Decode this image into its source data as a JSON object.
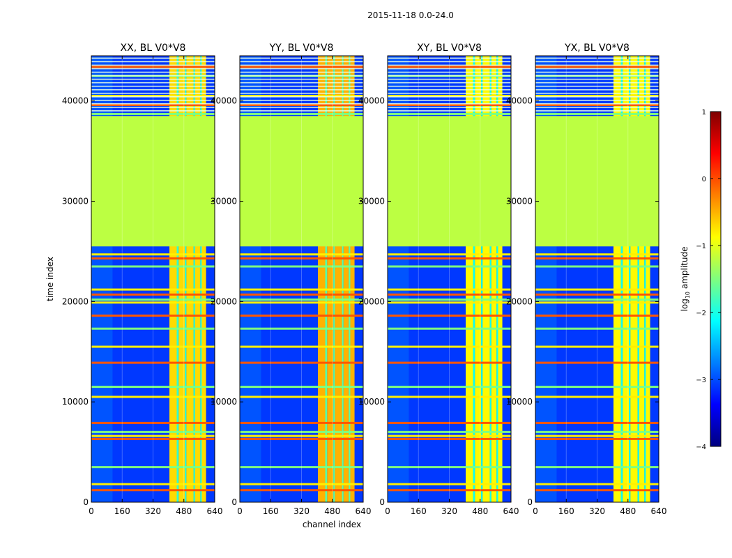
{
  "suptitle": "2015-11-18 0.0-24.0",
  "chart_data": {
    "type": "heatmap",
    "xlabel": "channel index",
    "ylabel": "time index",
    "xlim": [
      0,
      640
    ],
    "ylim": [
      0,
      44500
    ],
    "xticks": [
      0,
      160,
      320,
      480,
      640
    ],
    "yticks": [
      0,
      10000,
      20000,
      30000,
      40000
    ],
    "colorbar": {
      "label_prefix": "log",
      "label_sub": "10",
      "label_suffix": " amplitude",
      "range": [
        -4,
        1
      ],
      "ticks": [
        {
          "value": 1,
          "label": "1"
        },
        {
          "value": 0,
          "label": "0"
        },
        {
          "value": -1,
          "label": "−1"
        },
        {
          "value": -2,
          "label": "−2"
        },
        {
          "value": -3,
          "label": "−3"
        },
        {
          "value": -4,
          "label": "−4"
        }
      ],
      "colors": [
        "#00007f",
        "#0000ff",
        "#007fff",
        "#00ffff",
        "#7fff7f",
        "#ffff00",
        "#ff7f00",
        "#ff0000",
        "#7f0000"
      ]
    },
    "flagged_time_range": [
      25500,
      38500
    ],
    "flagged_value": -1.2,
    "background_value": -3.1,
    "band_channel_range": [
      405,
      595
    ],
    "rfi_rows": [
      1200,
      1800,
      3500,
      6300,
      6600,
      7000,
      7900,
      10500,
      11500,
      13900,
      15500,
      17300,
      18600,
      19900,
      20200,
      20700,
      21200,
      23500,
      24300,
      24700,
      38700,
      39600,
      40500,
      42500,
      43400
    ],
    "panels": [
      {
        "title": "XX, BL V0*V8",
        "band_value": -0.7
      },
      {
        "title": "YY, BL V0*V8",
        "band_value": -0.5
      },
      {
        "title": "XY, BL V0*V8",
        "band_value": -0.85
      },
      {
        "title": "YX, BL V0*V8",
        "band_value": -0.85
      }
    ]
  }
}
